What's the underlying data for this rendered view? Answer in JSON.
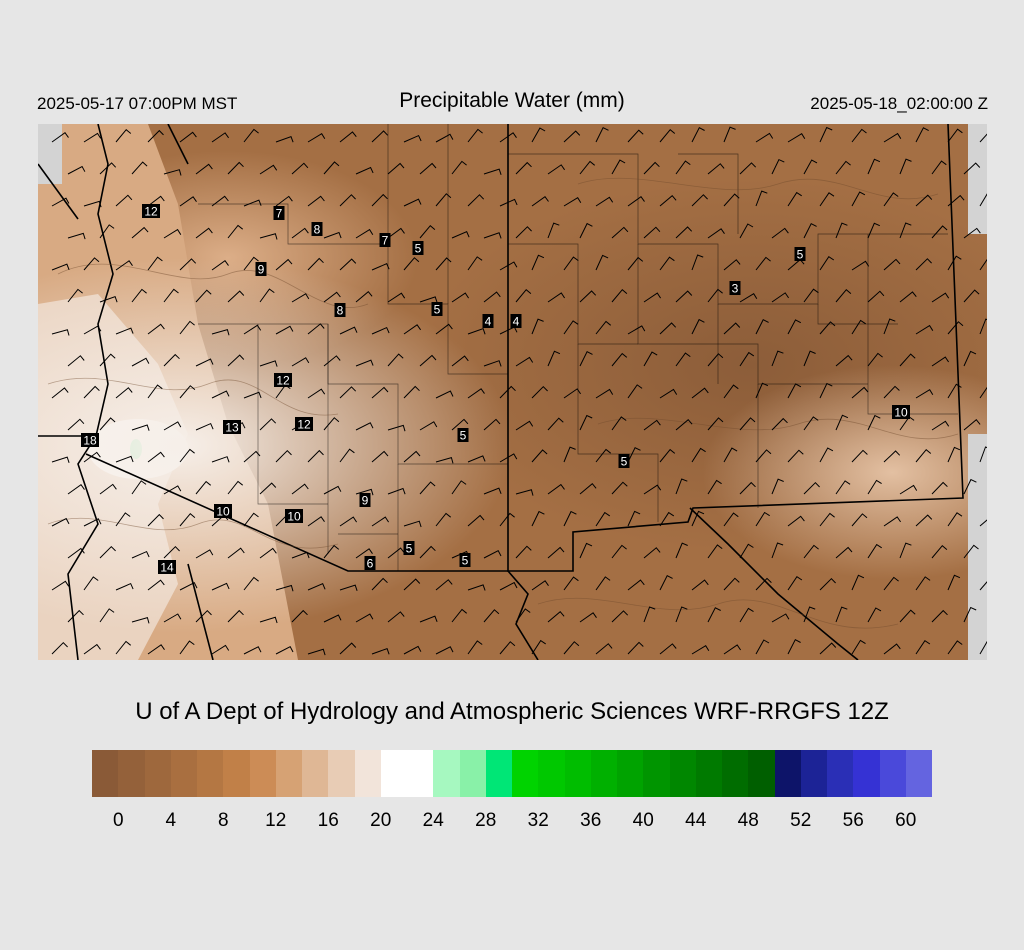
{
  "header": {
    "valid_local": "2025-05-17 07:00PM MST",
    "title": "Precipitable Water (mm)",
    "valid_utc": "2025-05-18_02:00:00 Z"
  },
  "credit": "U of A Dept of Hydrology and Atmospheric Sciences WRF-RRGFS 12Z",
  "map": {
    "station_labels": [
      "12",
      "7",
      "8",
      "7",
      "5",
      "9",
      "5",
      "8",
      "4",
      "4",
      "3",
      "5",
      "12",
      "13",
      "12",
      "18",
      "5",
      "5",
      "9",
      "10",
      "10",
      "5",
      "6",
      "5",
      "14",
      "10"
    ]
  },
  "colorbar": {
    "ticks": [
      "0",
      "4",
      "8",
      "12",
      "16",
      "20",
      "24",
      "28",
      "32",
      "36",
      "40",
      "44",
      "48",
      "52",
      "56",
      "60"
    ],
    "colors": [
      "#8a5a37",
      "#94613a",
      "#9e683d",
      "#a96f40",
      "#b47743",
      "#c18048",
      "#cc8c56",
      "#d6a274",
      "#dfb795",
      "#e8ccb5",
      "#f2e4da",
      "#ffffff",
      "#ffffff",
      "#a6f8c0",
      "#89f1a8",
      "#00e676",
      "#00d300",
      "#00c800",
      "#00bd00",
      "#00b000",
      "#00a300",
      "#009500",
      "#008700",
      "#007a00",
      "#006d00",
      "#005f00",
      "#0d1469",
      "#1c2396",
      "#2a2fb6",
      "#3532d4",
      "#4a49da",
      "#6464e0"
    ]
  }
}
